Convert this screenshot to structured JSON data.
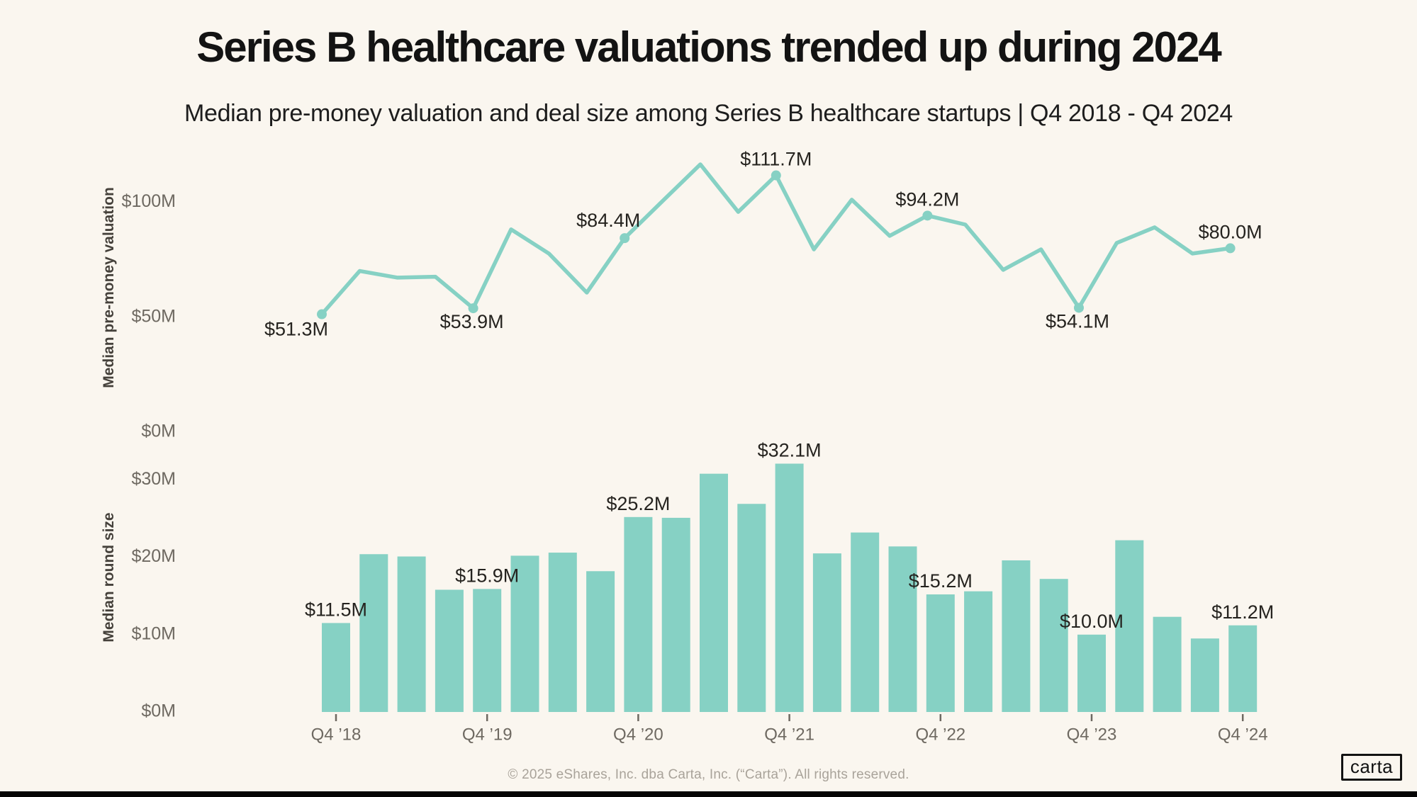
{
  "header": {
    "title": "Series B healthcare valuations trended up during 2024",
    "subtitle": "Median pre-money valuation and deal size among Series B healthcare startups | Q4 2018 - Q4 2024"
  },
  "colors": {
    "background": "#faf6ef",
    "accent_teal": "#86d1c4",
    "title_text": "#131313",
    "data_label_text": "#25231f",
    "axis_tick_text": "#6e6961",
    "axis_title_text": "#45413b",
    "footer_text": "#a9a39a",
    "logo_black": "#121212"
  },
  "chart_data": [
    {
      "type": "line",
      "name": "median-pre-money-valuation",
      "ylabel": "Median pre-money valuation",
      "unit": "$M",
      "ylim": [
        0,
        125
      ],
      "grid": false,
      "legend": false,
      "x": [
        "Q4 ’18",
        "Q1 ’19",
        "Q2 ’19",
        "Q3 ’19",
        "Q4 ’19",
        "Q1 ’20",
        "Q2 ’20",
        "Q3 ’20",
        "Q4 ’20",
        "Q1 ’21",
        "Q2 ’21",
        "Q3 ’21",
        "Q4 ’21",
        "Q1 ’22",
        "Q2 ’22",
        "Q3 ’22",
        "Q4 ’22",
        "Q1 ’23",
        "Q2 ’23",
        "Q3 ’23",
        "Q4 ’23",
        "Q1 ’24",
        "Q2 ’24",
        "Q3 ’24",
        "Q4 ’24"
      ],
      "values": [
        51.3,
        70.1,
        67.2,
        67.6,
        53.9,
        88.2,
        77.7,
        60.7,
        84.4,
        100.5,
        116.5,
        95.8,
        111.7,
        79.5,
        101.1,
        85.4,
        94.2,
        90.3,
        70.6,
        79.5,
        54.1,
        82.3,
        89.1,
        77.7,
        80.0
      ],
      "yticks": [
        {
          "value": 0,
          "label": "$0M"
        },
        {
          "value": 50,
          "label": "$50M"
        },
        {
          "value": 100,
          "label": "$100M"
        }
      ],
      "point_labels": [
        {
          "index": 0,
          "text": "$51.3M",
          "placement": "below-left"
        },
        {
          "index": 4,
          "text": "$53.9M",
          "placement": "below"
        },
        {
          "index": 8,
          "text": "$84.4M",
          "placement": "above-left"
        },
        {
          "index": 12,
          "text": "$111.7M",
          "placement": "above"
        },
        {
          "index": 16,
          "text": "$94.2M",
          "placement": "above"
        },
        {
          "index": 20,
          "text": "$54.1M",
          "placement": "below"
        },
        {
          "index": 24,
          "text": "$80.0M",
          "placement": "above"
        }
      ]
    },
    {
      "type": "bar",
      "name": "median-round-size",
      "ylabel": "Median round size",
      "unit": "$M",
      "ylim": [
        0,
        35
      ],
      "grid": false,
      "legend": false,
      "x": [
        "Q4 ’18",
        "Q1 ’19",
        "Q2 ’19",
        "Q3 ’19",
        "Q4 ’19",
        "Q1 ’20",
        "Q2 ’20",
        "Q3 ’20",
        "Q4 ’20",
        "Q1 ’21",
        "Q2 ’21",
        "Q3 ’21",
        "Q4 ’21",
        "Q1 ’22",
        "Q2 ’22",
        "Q3 ’22",
        "Q4 ’22",
        "Q1 ’23",
        "Q2 ’23",
        "Q3 ’23",
        "Q4 ’23",
        "Q1 ’24",
        "Q2 ’24",
        "Q3 ’24",
        "Q4 ’24"
      ],
      "values": [
        11.5,
        20.4,
        20.1,
        15.8,
        15.9,
        20.2,
        20.6,
        18.2,
        25.2,
        25.1,
        30.8,
        26.9,
        32.1,
        20.5,
        23.2,
        21.4,
        15.2,
        15.6,
        19.6,
        17.2,
        10.0,
        22.2,
        12.3,
        9.5,
        11.2
      ],
      "yticks": [
        {
          "value": 0,
          "label": "$0M"
        },
        {
          "value": 10,
          "label": "$10M"
        },
        {
          "value": 20,
          "label": "$20M"
        },
        {
          "value": 30,
          "label": "$30M"
        }
      ],
      "xticks": [
        {
          "index": 0,
          "label": "Q4 ’18"
        },
        {
          "index": 4,
          "label": "Q4 ’19"
        },
        {
          "index": 8,
          "label": "Q4 ’20"
        },
        {
          "index": 12,
          "label": "Q4 ’21"
        },
        {
          "index": 16,
          "label": "Q4 ’22"
        },
        {
          "index": 20,
          "label": "Q4 ’23"
        },
        {
          "index": 24,
          "label": "Q4 ’24"
        }
      ],
      "point_labels": [
        {
          "index": 0,
          "text": "$11.5M",
          "placement": "above"
        },
        {
          "index": 4,
          "text": "$15.9M",
          "placement": "above"
        },
        {
          "index": 8,
          "text": "$25.2M",
          "placement": "above"
        },
        {
          "index": 12,
          "text": "$32.1M",
          "placement": "above"
        },
        {
          "index": 16,
          "text": "$15.2M",
          "placement": "above"
        },
        {
          "index": 20,
          "text": "$10.0M",
          "placement": "above"
        },
        {
          "index": 24,
          "text": "$11.2M",
          "placement": "above"
        }
      ]
    }
  ],
  "footer": {
    "copyright": "© 2025 eShares, Inc. dba Carta, Inc. (“Carta”). All rights reserved.",
    "logo_text": "carta"
  }
}
